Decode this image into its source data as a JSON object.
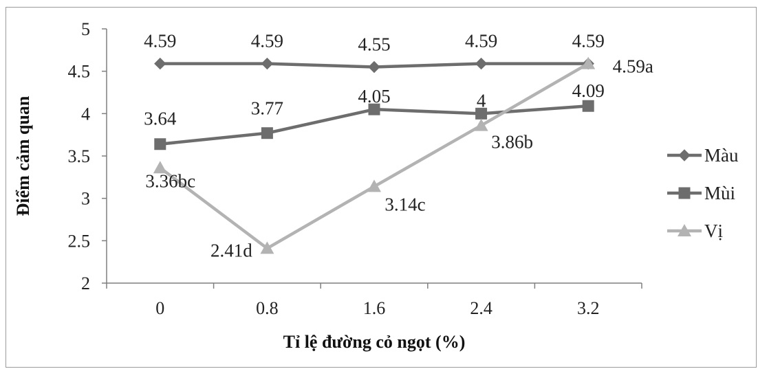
{
  "chart_data": {
    "type": "line",
    "title": "",
    "xlabel": "Tỉ lệ đường cỏ ngọt (%)",
    "ylabel": "Điểm cảm quan",
    "categories": [
      "0",
      "0.8",
      "1.6",
      "2.4",
      "3.2"
    ],
    "ylim": [
      2,
      5
    ],
    "yticks": [
      "2",
      "2.5",
      "3",
      "3.5",
      "4",
      "4.5",
      "5"
    ],
    "grid": false,
    "legend_position": "right",
    "series": [
      {
        "name": "Màu",
        "marker": "diamond",
        "color": "#6d6d6d",
        "values": [
          4.59,
          4.59,
          4.55,
          4.59,
          4.59
        ],
        "labels": [
          "4.59",
          "4.59",
          "4.55",
          "4.59",
          "4.59"
        ]
      },
      {
        "name": "Mùi",
        "marker": "square",
        "color": "#6d6d6d",
        "values": [
          3.64,
          3.77,
          4.05,
          4.0,
          4.09
        ],
        "labels": [
          "3.64",
          "3.77",
          "4.05",
          "4",
          "4.09"
        ]
      },
      {
        "name": "Vị",
        "marker": "triangle",
        "color": "#b3b3b3",
        "values": [
          3.36,
          2.41,
          3.14,
          3.86,
          4.59
        ],
        "labels": [
          "3.36bc",
          "2.41d",
          "3.14c",
          "3.86b",
          "4.59a"
        ]
      }
    ]
  }
}
